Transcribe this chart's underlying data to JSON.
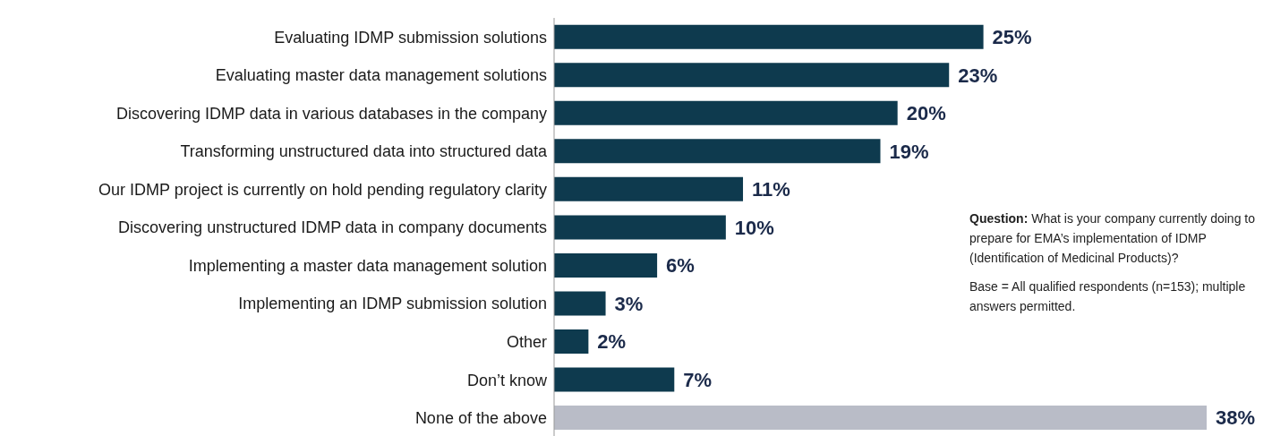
{
  "chart_data": {
    "type": "bar",
    "orientation": "horizontal",
    "categories": [
      "Evaluating IDMP submission solutions",
      "Evaluating master data management solutions",
      "Discovering IDMP data in various databases in the company",
      "Transforming unstructured data into structured data",
      "Our IDMP project is currently on hold pending regulatory clarity",
      "Discovering unstructured IDMP data in company documents",
      "Implementing a master data management solution",
      "Implementing an IDMP submission solution",
      "Other",
      "Don’t know",
      "None of the above"
    ],
    "values": [
      25,
      23,
      20,
      19,
      11,
      10,
      6,
      3,
      2,
      7,
      38
    ],
    "value_labels": [
      "25%",
      "23%",
      "20%",
      "19%",
      "11%",
      "10%",
      "6%",
      "3%",
      "2%",
      "7%",
      "38%"
    ],
    "colors": [
      "#0e3a4e",
      "#0e3a4e",
      "#0e3a4e",
      "#0e3a4e",
      "#0e3a4e",
      "#0e3a4e",
      "#0e3a4e",
      "#0e3a4e",
      "#0e3a4e",
      "#0e3a4e",
      "#b9bcc7"
    ],
    "annotations": [
      "Question: What is your company currently doing to prepare for EMA’s implementation of IDMP (Identification of Medicinal Products)?",
      "Base = All qualified respondents (n=153); multiple answers permitted."
    ],
    "grid": false,
    "legend": false
  }
}
